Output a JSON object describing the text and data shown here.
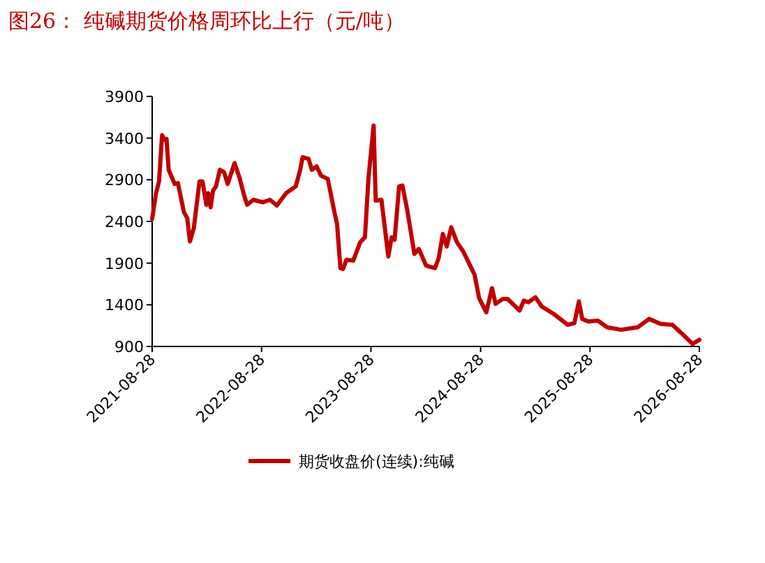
{
  "chart_data": {
    "type": "line",
    "title": "图26：  纯碱期货价格周环比上行（元/吨）",
    "xlim": [
      "2021-08-28",
      "2026-08-28"
    ],
    "xticks": [
      "2021-08-28",
      "2022-08-28",
      "2023-08-28",
      "2024-08-28",
      "2025-08-28",
      "2026-08-28"
    ],
    "ylim": [
      900,
      3900
    ],
    "yticks": [
      900,
      1400,
      1900,
      2400,
      2900,
      3400,
      3900
    ],
    "grid": false,
    "legend": "bottom",
    "marker": "none",
    "line_style": "solid",
    "series": [
      {
        "name": "期货收盘价(连续):纯碱",
        "color": "#c00000",
        "x": [
          "2021-08-28",
          "2021-09-10",
          "2021-09-20",
          "2021-09-30",
          "2021-10-08",
          "2021-10-15",
          "2021-10-22",
          "2021-11-11",
          "2021-11-22",
          "2021-12-12",
          "2021-12-23",
          "2022-01-01",
          "2022-01-14",
          "2022-02-02",
          "2022-02-12",
          "2022-02-25",
          "2022-03-03",
          "2022-03-11",
          "2022-03-19",
          "2022-03-29",
          "2022-04-11",
          "2022-04-25",
          "2022-05-07",
          "2022-05-30",
          "2022-06-15",
          "2022-07-01",
          "2022-07-11",
          "2022-08-01",
          "2022-09-01",
          "2022-09-25",
          "2022-10-18",
          "2022-11-18",
          "2022-12-20",
          "2023-01-04",
          "2023-01-12",
          "2023-02-01",
          "2023-02-12",
          "2023-02-28",
          "2023-03-14",
          "2023-04-06",
          "2023-04-30",
          "2023-05-07",
          "2023-05-18",
          "2023-05-27",
          "2023-06-07",
          "2023-06-30",
          "2023-07-23",
          "2023-08-08",
          "2023-08-20",
          "2023-09-06",
          "2023-09-13",
          "2023-10-02",
          "2023-10-25",
          "2023-11-05",
          "2023-11-15",
          "2023-11-30",
          "2023-12-11",
          "2023-12-27",
          "2024-01-20",
          "2024-02-04",
          "2024-02-28",
          "2024-03-29",
          "2024-04-10",
          "2024-04-24",
          "2024-05-07",
          "2024-05-22",
          "2024-06-10",
          "2024-07-01",
          "2024-07-16",
          "2024-08-08",
          "2024-08-23",
          "2024-09-16",
          "2024-10-05",
          "2024-10-17",
          "2024-11-10",
          "2024-11-26",
          "2025-01-05",
          "2025-01-19",
          "2025-02-03",
          "2025-02-27",
          "2025-03-20",
          "2025-04-29",
          "2025-06-14",
          "2025-07-07",
          "2025-07-22",
          "2025-08-02",
          "2025-08-23",
          "2025-09-23",
          "2025-10-24",
          "2025-12-10",
          "2026-02-03",
          "2026-03-13",
          "2026-04-21",
          "2026-05-30",
          "2026-07-08",
          "2026-08-05",
          "2026-08-28"
        ],
        "values": [
          2430,
          2740,
          2880,
          3435,
          3380,
          3390,
          3020,
          2850,
          2860,
          2510,
          2440,
          2160,
          2320,
          2880,
          2880,
          2600,
          2740,
          2570,
          2770,
          2820,
          3020,
          2990,
          2850,
          3100,
          2930,
          2710,
          2600,
          2660,
          2630,
          2660,
          2590,
          2740,
          2820,
          3020,
          3170,
          3150,
          3020,
          3060,
          2950,
          2910,
          2480,
          2370,
          1840,
          1830,
          1940,
          1930,
          2150,
          2210,
          2930,
          3550,
          2650,
          2660,
          1980,
          2210,
          2180,
          2820,
          2830,
          2540,
          2010,
          2070,
          1870,
          1840,
          1960,
          2250,
          2100,
          2330,
          2150,
          2040,
          1930,
          1760,
          1480,
          1310,
          1600,
          1410,
          1470,
          1470,
          1330,
          1450,
          1430,
          1490,
          1380,
          1290,
          1160,
          1180,
          1440,
          1230,
          1200,
          1210,
          1130,
          1100,
          1130,
          1230,
          1170,
          1160,
          1030,
          930,
          980
        ]
      }
    ]
  }
}
